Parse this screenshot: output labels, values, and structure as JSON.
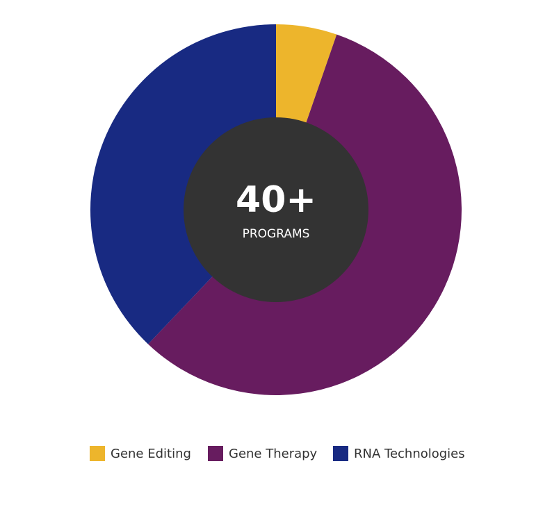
{
  "chart_data": {
    "type": "donut",
    "center_value": "40+",
    "center_label": "PROGRAMS",
    "series": [
      {
        "name": "Gene Editing",
        "color": "#edb52c",
        "values": [
          5.3
        ]
      },
      {
        "name": "Gene Therapy",
        "color": "#671c5f",
        "values": [
          56.8
        ]
      },
      {
        "name": "RNA Technologies",
        "color": "#182a82",
        "values": [
          37.9
        ]
      }
    ],
    "center_color": "#333333",
    "legend": "bottom"
  }
}
